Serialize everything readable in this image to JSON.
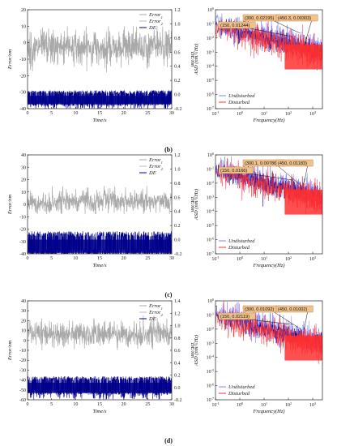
{
  "colors": {
    "error_gray": "#a9a9a9",
    "de_blue": "#00008b",
    "undisturbed": "#8080ff",
    "disturbed_red": "#ff3030",
    "dark_blue": "#1010a0",
    "annotation_fill": "#f2c28c",
    "annotation_stroke": "#b07030"
  },
  "rows": [
    {
      "label": "(b)",
      "left": {
        "type": "line",
        "xlabel": "Time/s",
        "ylabel": "Error/nm",
        "y2label": "DE/nm",
        "xlim": [
          0,
          30
        ],
        "ylim": [
          -40,
          20
        ],
        "y2lim": [
          -0.2,
          1.2
        ],
        "xticks": [
          "0",
          "5",
          "10",
          "15",
          "20",
          "25",
          "30"
        ],
        "yticks": [
          "20",
          "10",
          "0",
          "-10",
          "-20",
          "-30",
          "-40"
        ],
        "y2ticks": [
          "1.2",
          "1.0",
          "0.8",
          "0.6",
          "0.4",
          "0.2",
          "0.0",
          "-0.2"
        ],
        "legend": [
          "Error",
          "Error",
          "DE"
        ],
        "legend_subs": [
          "1",
          "2",
          ""
        ],
        "error_band": [
          -18,
          10
        ],
        "error_center": -3,
        "de_band": [
          -0.16,
          0.06
        ]
      },
      "right": {
        "type": "line",
        "xlabel": "Frequency(Hz)",
        "ylabel": "ASD (nm/√Hz)",
        "xlim": [
          0.1,
          2500
        ],
        "ylim": [
          1e-07,
          1
        ],
        "xticks": [
          "10",
          "10",
          "10",
          "10",
          "10"
        ],
        "xtick_exps": [
          "-1",
          "0",
          "1",
          "2",
          "3"
        ],
        "yticks": [
          "10",
          "10",
          "10",
          "10",
          "10",
          "10",
          "10",
          "10"
        ],
        "ytick_exps": [
          "0",
          "-1",
          "-2",
          "-3",
          "-4",
          "-5",
          "-6",
          "-7"
        ],
        "legend": [
          "Undisturbed",
          "Disturbed"
        ],
        "annotations": [
          {
            "text": "(150, 0.01244)",
            "x": 150,
            "y": 0.01244
          },
          {
            "text": "(300, 0.02195)",
            "x": 300,
            "y": 0.02195
          },
          {
            "text": "(450.3, 0.00303)",
            "x": 450.3,
            "y": 0.00303
          }
        ]
      }
    },
    {
      "label": "(c)",
      "left": {
        "type": "line",
        "xlabel": "Time/s",
        "ylabel": "Error/nm",
        "y2label": "DE/nm",
        "xlim": [
          0,
          30
        ],
        "ylim": [
          -40,
          40
        ],
        "y2lim": [
          -0.2,
          1.2
        ],
        "xticks": [
          "0",
          "5",
          "10",
          "15",
          "20",
          "25",
          "30"
        ],
        "yticks": [
          "40",
          "30",
          "20",
          "10",
          "0",
          "-10",
          "-20",
          "-30",
          "-40"
        ],
        "y2ticks": [
          "1.2",
          "1.0",
          "0.8",
          "0.6",
          "0.4",
          "0.2",
          "0.0",
          "-0.2"
        ],
        "legend": [
          "Error",
          "Error",
          "DE"
        ],
        "legend_subs": [
          "1",
          "2",
          ""
        ],
        "error_band": [
          -8,
          15
        ],
        "error_center": 2,
        "de_band": [
          -0.22,
          0.12
        ]
      },
      "right": {
        "type": "line",
        "xlabel": "Frequency(Hz)",
        "ylabel": "ASD (nm/√Hz)",
        "xlim": [
          0.1,
          2500
        ],
        "ylim": [
          1e-07,
          1
        ],
        "xticks": [
          "10",
          "10",
          "10",
          "10",
          "10"
        ],
        "xtick_exps": [
          "-1",
          "0",
          "1",
          "2",
          "3"
        ],
        "yticks": [
          "10",
          "10",
          "10",
          "10",
          "10",
          "10",
          "10",
          "10"
        ],
        "ytick_exps": [
          "0",
          "-1",
          "-2",
          "-3",
          "-4",
          "-5",
          "-6",
          "-7"
        ],
        "legend": [
          "Undisturbed",
          "Disturbed"
        ],
        "annotations": [
          {
            "text": "(150, 0.0166)",
            "x": 150,
            "y": 0.0166
          },
          {
            "text": "(300.1, 0.00786)",
            "x": 300.1,
            "y": 0.00786
          },
          {
            "text": "(450, 0.01183)",
            "x": 450,
            "y": 0.01183
          }
        ]
      }
    },
    {
      "label": "(d)",
      "left": {
        "type": "line",
        "xlabel": "Time/s",
        "ylabel": "Error/nm",
        "y2label": "DE/nm",
        "xlim": [
          0,
          30
        ],
        "ylim": [
          -60,
          40
        ],
        "y2lim": [
          -0.2,
          1.4
        ],
        "xticks": [
          "0",
          "5",
          "10",
          "15",
          "20",
          "25",
          "30"
        ],
        "yticks": [
          "40",
          "30",
          "20",
          "10",
          "0",
          "-10",
          "-20",
          "-30",
          "-40",
          "-50",
          "-60"
        ],
        "y2ticks": [
          "1.4",
          "1.2",
          "1.0",
          "0.8",
          "0.6",
          "0.4",
          "0.2",
          "0.0",
          "-0.2"
        ],
        "legend": [
          "Error",
          "Error",
          "DE"
        ],
        "legend_subs": [
          "1",
          "2",
          ""
        ],
        "error_band": [
          -10,
          25
        ],
        "error_center": 7,
        "de_band": [
          -0.12,
          0.18
        ]
      },
      "right": {
        "type": "line",
        "xlabel": "Frequency(Hz)",
        "ylabel": "ASD (nm/√Hz)",
        "xlim": [
          0.1,
          2500
        ],
        "ylim": [
          1e-07,
          1
        ],
        "xticks": [
          "10",
          "10",
          "10",
          "10",
          "10"
        ],
        "xtick_exps": [
          "-1",
          "0",
          "1",
          "2",
          "3"
        ],
        "yticks": [
          "10",
          "10",
          "10",
          "10",
          "10",
          "10",
          "10",
          "10"
        ],
        "ytick_exps": [
          "0",
          "-1",
          "-2",
          "-3",
          "-4",
          "-5",
          "-6",
          "-7"
        ],
        "legend": [
          "Undisturbed",
          "Disturbed"
        ],
        "annotations": [
          {
            "text": "(150, 0.02119)",
            "x": 150,
            "y": 0.02119
          },
          {
            "text": "(300, 0.01092)",
            "x": 300,
            "y": 0.01092
          },
          {
            "text": "(450, 0.01002)",
            "x": 450,
            "y": 0.01002
          }
        ]
      }
    }
  ],
  "chart_data": [
    {
      "type": "line",
      "title": "",
      "xlabel": "Time/s",
      "ylabel": "Error/nm",
      "y2label": "DE/nm",
      "xlim": [
        0,
        30
      ],
      "ylim": [
        -40,
        20
      ],
      "y2lim": [
        -0.2,
        1.2
      ],
      "series": [
        {
          "name": "Error1"
        },
        {
          "name": "Error2"
        },
        {
          "name": "DE"
        }
      ]
    },
    {
      "type": "line",
      "title": "",
      "xlabel": "Frequency(Hz)",
      "ylabel": "ASD (nm/√Hz)",
      "xscale": "log",
      "yscale": "log",
      "xlim": [
        0.1,
        2500
      ],
      "ylim": [
        1e-07,
        1
      ],
      "series": [
        {
          "name": "Undisturbed"
        },
        {
          "name": "Disturbed"
        }
      ],
      "points": [
        [
          150,
          0.01244
        ],
        [
          300,
          0.02195
        ],
        [
          450.3,
          0.00303
        ]
      ]
    },
    {
      "type": "line",
      "title": "",
      "xlabel": "Time/s",
      "ylabel": "Error/nm",
      "y2label": "DE/nm",
      "xlim": [
        0,
        30
      ],
      "ylim": [
        -40,
        40
      ],
      "y2lim": [
        -0.2,
        1.2
      ],
      "series": [
        {
          "name": "Error1"
        },
        {
          "name": "Error2"
        },
        {
          "name": "DE"
        }
      ]
    },
    {
      "type": "line",
      "title": "",
      "xlabel": "Frequency(Hz)",
      "ylabel": "ASD (nm/√Hz)",
      "xscale": "log",
      "yscale": "log",
      "xlim": [
        0.1,
        2500
      ],
      "ylim": [
        1e-07,
        1
      ],
      "series": [
        {
          "name": "Undisturbed"
        },
        {
          "name": "Disturbed"
        }
      ],
      "points": [
        [
          150,
          0.0166
        ],
        [
          300.1,
          0.00786
        ],
        [
          450,
          0.01183
        ]
      ]
    },
    {
      "type": "line",
      "title": "",
      "xlabel": "Time/s",
      "ylabel": "Error/nm",
      "y2label": "DE/nm",
      "xlim": [
        0,
        30
      ],
      "ylim": [
        -60,
        40
      ],
      "y2lim": [
        -0.2,
        1.4
      ],
      "series": [
        {
          "name": "Error1"
        },
        {
          "name": "Error2"
        },
        {
          "name": "DE"
        }
      ]
    },
    {
      "type": "line",
      "title": "",
      "xlabel": "Frequency(Hz)",
      "ylabel": "ASD (nm/√Hz)",
      "xscale": "log",
      "yscale": "log",
      "xlim": [
        0.1,
        2500
      ],
      "ylim": [
        1e-07,
        1
      ],
      "series": [
        {
          "name": "Undisturbed"
        },
        {
          "name": "Disturbed"
        }
      ],
      "points": [
        [
          150,
          0.02119
        ],
        [
          300,
          0.01092
        ],
        [
          450,
          0.01002
        ]
      ]
    }
  ]
}
